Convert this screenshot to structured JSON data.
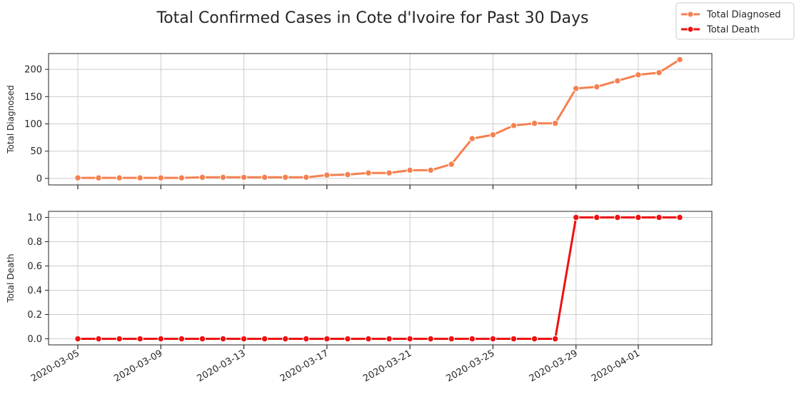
{
  "chart_data": {
    "type": "line",
    "title": "Total Confirmed Cases in Cote d'Ivoire for Past 30 Days",
    "x": [
      "2020-03-05",
      "2020-03-06",
      "2020-03-07",
      "2020-03-08",
      "2020-03-09",
      "2020-03-10",
      "2020-03-11",
      "2020-03-12",
      "2020-03-13",
      "2020-03-14",
      "2020-03-15",
      "2020-03-16",
      "2020-03-17",
      "2020-03-18",
      "2020-03-19",
      "2020-03-20",
      "2020-03-21",
      "2020-03-22",
      "2020-03-23",
      "2020-03-24",
      "2020-03-25",
      "2020-03-26",
      "2020-03-27",
      "2020-03-28",
      "2020-03-29",
      "2020-03-30",
      "2020-03-31",
      "2020-04-01",
      "2020-04-02",
      "2020-04-03"
    ],
    "x_tick_labels": [
      "2020-03-05",
      "2020-03-09",
      "2020-03-13",
      "2020-03-17",
      "2020-03-21",
      "2020-03-25",
      "2020-03-29",
      "2020-04-01"
    ],
    "legend": {
      "position": "top-right",
      "entries": [
        "Total Diagnosed",
        "Total Death"
      ]
    },
    "grid": true,
    "panels": [
      {
        "name": "Total Diagnosed",
        "ylabel": "Total Diagnosed",
        "color": "#f5804f",
        "values": [
          1,
          1,
          1,
          1,
          1,
          1,
          2,
          2,
          2,
          2,
          2,
          2,
          6,
          7,
          10,
          10,
          15,
          15,
          26,
          73,
          80,
          97,
          101,
          101,
          165,
          168,
          179,
          190,
          194,
          218
        ],
        "ylim": [
          -12,
          229
        ],
        "yticks": [
          0,
          50,
          100,
          150,
          200
        ],
        "ytick_labels": [
          "0",
          "50",
          "100",
          "150",
          "200"
        ]
      },
      {
        "name": "Total Death",
        "ylabel": "Total Death",
        "color": "#ee1111",
        "values": [
          0,
          0,
          0,
          0,
          0,
          0,
          0,
          0,
          0,
          0,
          0,
          0,
          0,
          0,
          0,
          0,
          0,
          0,
          0,
          0,
          0,
          0,
          0,
          0,
          1,
          1,
          1,
          1,
          1,
          1
        ],
        "ylim": [
          -0.05,
          1.05
        ],
        "yticks": [
          0,
          0.2,
          0.4,
          0.6,
          0.8,
          1.0
        ],
        "ytick_labels": [
          "0.0",
          "0.2",
          "0.4",
          "0.6",
          "0.8",
          "1.0"
        ]
      }
    ]
  }
}
